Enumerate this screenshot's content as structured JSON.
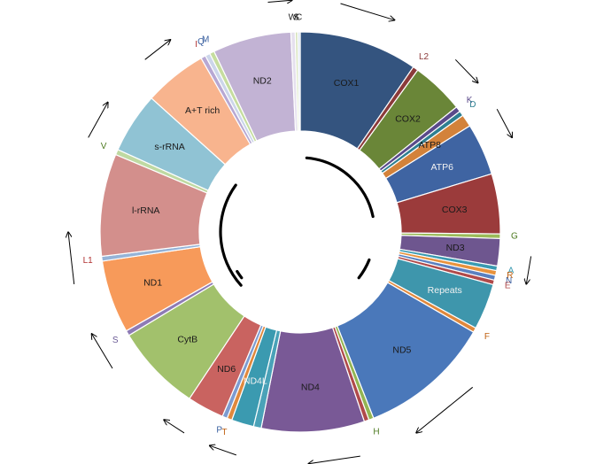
{
  "chart_data": {
    "type": "pie",
    "variant": "donut",
    "title": "",
    "segments": [
      {
        "label": "COX1",
        "value": 1540,
        "color": "#34547f",
        "inside": true,
        "label_color": "#1a1a1a"
      },
      {
        "label": "L2",
        "value": 69,
        "color": "#8b3a3a",
        "inside": false,
        "label_color": "#8b3a3a"
      },
      {
        "label": "COX2",
        "value": 688,
        "color": "#6a8638",
        "inside": true,
        "label_color": "#1a1a1a"
      },
      {
        "label": "K",
        "value": 70,
        "color": "#5a4a8a",
        "inside": false,
        "label_color": "#5a4a8a"
      },
      {
        "label": "D",
        "value": 65,
        "color": "#2e7f91",
        "inside": false,
        "label_color": "#2e7f91"
      },
      {
        "label": "ATP8",
        "value": 160,
        "color": "#d3823a",
        "inside": true,
        "label_color": "#1a1a1a"
      },
      {
        "label": "ATP6",
        "value": 678,
        "color": "#3f64a2",
        "inside": true,
        "label_color": "#f2f2f2"
      },
      {
        "label": "COX3",
        "value": 780,
        "color": "#9b3b3b",
        "inside": true,
        "label_color": "#1a1a1a"
      },
      {
        "label": "G",
        "value": 60,
        "color": "#9bbb59",
        "inside": false,
        "label_color": "#4d7a20"
      },
      {
        "label": "ND3",
        "value": 354,
        "color": "#6e568f",
        "inside": true,
        "label_color": "#1a1a1a"
      },
      {
        "label": "A",
        "value": 60,
        "color": "#3a9ab1",
        "inside": false,
        "label_color": "#3a9ab1"
      },
      {
        "label": "R",
        "value": 62,
        "color": "#e8923c",
        "inside": false,
        "label_color": "#c06010"
      },
      {
        "label": "N",
        "value": 63,
        "color": "#5a80c0",
        "inside": false,
        "label_color": "#3a60a0"
      },
      {
        "label": "E",
        "value": 60,
        "color": "#b04a4a",
        "inside": false,
        "label_color": "#b04a4a"
      },
      {
        "label": "Repeats",
        "value": 600,
        "color": "#3e96ac",
        "inside": true,
        "label_color": "#f2f2f2"
      },
      {
        "label": "F",
        "value": 60,
        "color": "#e0883c",
        "inside": false,
        "label_color": "#c06010"
      },
      {
        "label": "ND5",
        "value": 1720,
        "color": "#4a78ba",
        "inside": true,
        "label_color": "#1a1a1a"
      },
      {
        "label": "H",
        "value": 63,
        "color": "#93b553",
        "inside": false,
        "label_color": "#4d7a20"
      },
      {
        "label": "",
        "value": 63,
        "color": "#b04a4a",
        "inside": false,
        "label_color": "#b04a4a"
      },
      {
        "label": "ND4",
        "value": 1340,
        "color": "#795996",
        "inside": true,
        "label_color": "#1a1a1a"
      },
      {
        "label": "",
        "value": 100,
        "color": "#4aa2b8",
        "inside": false,
        "label_color": "#4aa2b8"
      },
      {
        "label": "ND4L",
        "value": 290,
        "color": "#3b9ab0",
        "inside": true,
        "label_color": "#f2f2f2"
      },
      {
        "label": "T",
        "value": 65,
        "color": "#e0883c",
        "inside": false,
        "label_color": "#c06010"
      },
      {
        "label": "P",
        "value": 65,
        "color": "#7d9bd0",
        "inside": false,
        "label_color": "#3a60a0"
      },
      {
        "label": "ND6",
        "value": 480,
        "color": "#c96360",
        "inside": true,
        "label_color": "#1a1a1a"
      },
      {
        "label": "CytB",
        "value": 1130,
        "color": "#a2c16c",
        "inside": true,
        "label_color": "#1a1a1a"
      },
      {
        "label": "S",
        "value": 67,
        "color": "#8e7bb5",
        "inside": false,
        "label_color": "#6a5a95"
      },
      {
        "label": "ND1",
        "value": 950,
        "color": "#f79a5a",
        "inside": true,
        "label_color": "#1a1a1a"
      },
      {
        "label": "L1",
        "value": 62,
        "color": "#95b3d7",
        "inside": false,
        "label_color": "#b03030"
      },
      {
        "label": "l-rRNA",
        "value": 1330,
        "color": "#d38f8c",
        "inside": true,
        "label_color": "#1a1a1a"
      },
      {
        "label": "V",
        "value": 70,
        "color": "#bfd9a2",
        "inside": false,
        "label_color": "#4d7a20"
      },
      {
        "label": "s-rRNA",
        "value": 790,
        "color": "#90c3d4",
        "inside": true,
        "label_color": "#1a1a1a"
      },
      {
        "label": "A+T rich",
        "value": 820,
        "color": "#f8b48e",
        "inside": true,
        "label_color": "#1a1a1a"
      },
      {
        "label": "I",
        "value": 63,
        "color": "#b7a8d3",
        "inside": false,
        "label_color": "#b03030"
      },
      {
        "label": "Q",
        "value": 63,
        "color": "#ccd6ea",
        "inside": false,
        "label_color": "#3a60a0"
      },
      {
        "label": "M",
        "value": 62,
        "color": "#c6dd9f",
        "inside": false,
        "label_color": "#3a60a0"
      },
      {
        "label": "ND2",
        "value": 1020,
        "color": "#c2b3d4",
        "inside": true,
        "label_color": "#1a1a1a"
      },
      {
        "label": "W",
        "value": 56,
        "color": "#e5e0ee",
        "inside": false,
        "label_color": "#1a1a1a"
      },
      {
        "label": "S",
        "value": 34,
        "color": "#d7e4bd",
        "inside": false,
        "label_color": "#1a1a1a"
      },
      {
        "label": "C",
        "value": 30,
        "color": "#dbe5f1",
        "inside": false,
        "label_color": "#1a1a1a"
      }
    ],
    "legend": "none"
  }
}
